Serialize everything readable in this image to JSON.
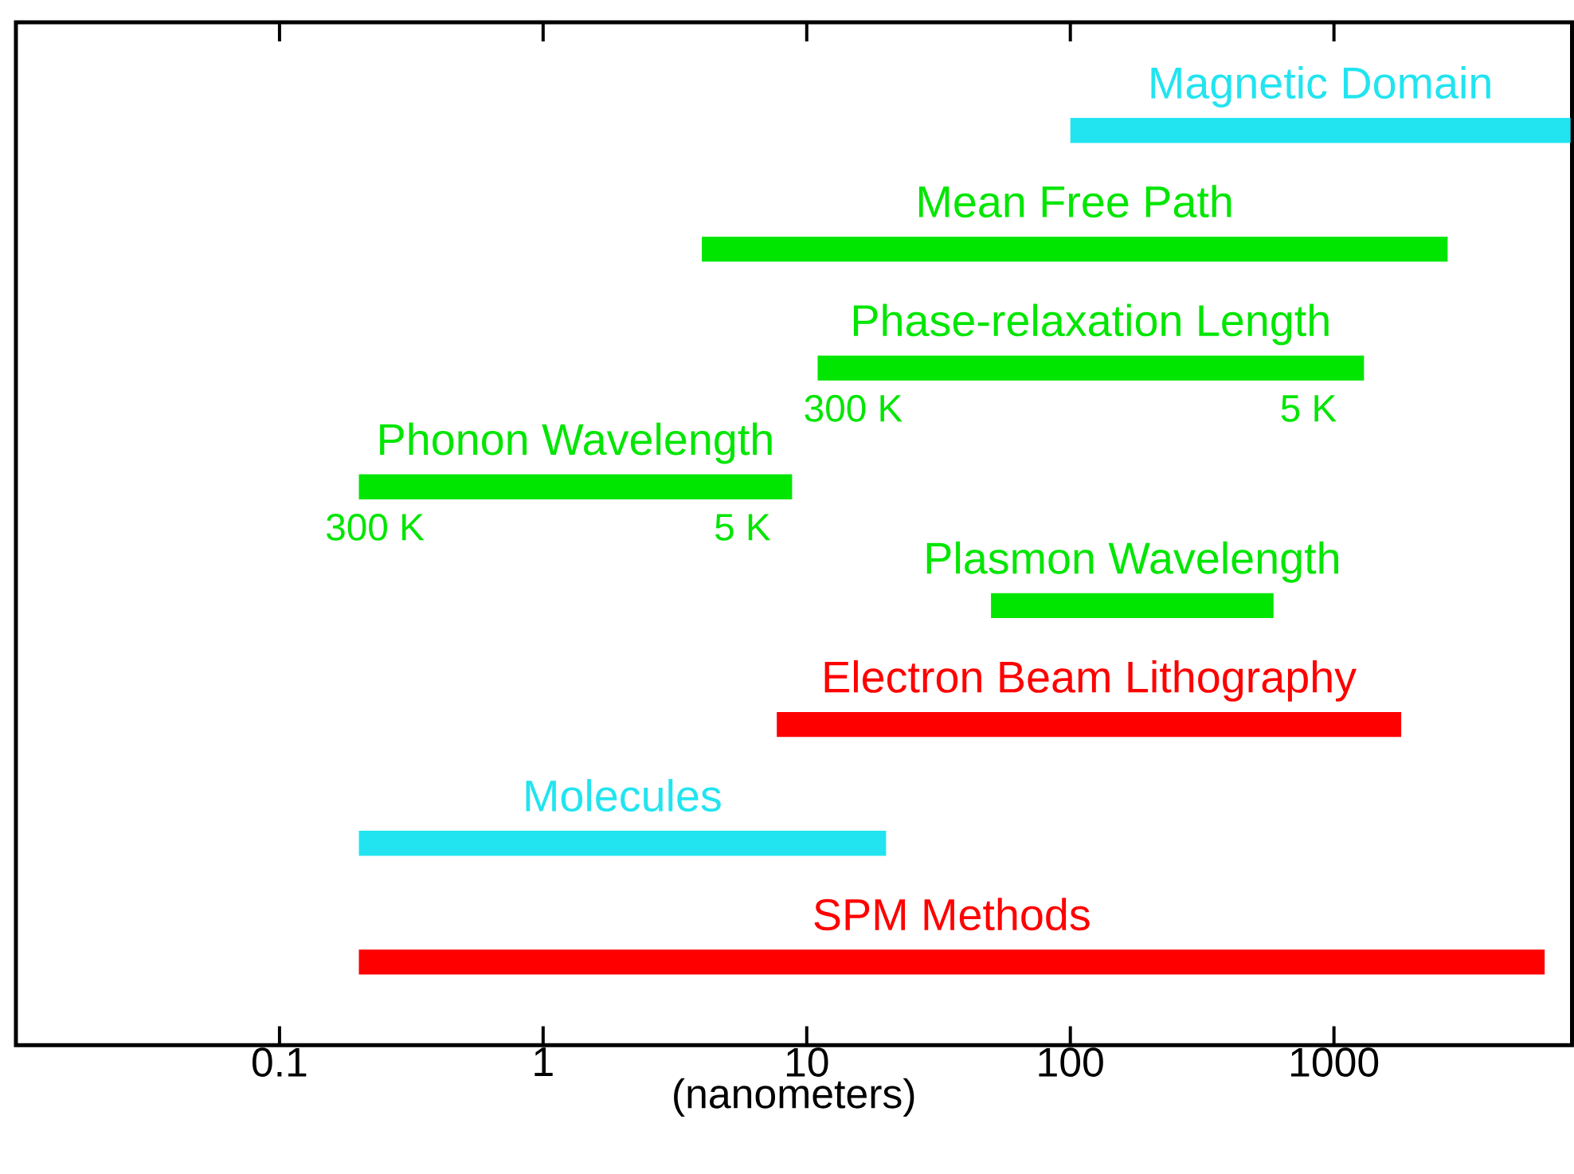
{
  "chart_data": {
    "type": "bar",
    "orientation": "horizontal",
    "log": "x",
    "categories": [
      "Magnetic Domain",
      "Mean Free Path",
      "Phase-relaxation Length",
      "Phonon Wavelength",
      "Plasmon Wavelength",
      "Electron Beam Lithography",
      "Molecules",
      "SPM Methods"
    ],
    "base": [
      100,
      4,
      11,
      0.2,
      50,
      7.7,
      0.2,
      0.2
    ],
    "values": [
      7800,
      2696,
      1289,
      8.6,
      540,
      1792,
      19.8,
      6300
    ],
    "colors": [
      "#22e4f0",
      "#00e600",
      "#00e600",
      "#00e600",
      "#00e600",
      "#ff0000",
      "#22e4f0",
      "#ff0000"
    ],
    "xlim": [
      0.01,
      8000
    ],
    "xticks": [
      0.1,
      1,
      10,
      100,
      1000
    ],
    "xlabel": "(nanometers)",
    "tick_labels": "x",
    "annotations": [
      {
        "text": "300 K",
        "x": 15,
        "y": "Phase-relaxation Length"
      },
      {
        "text": "5 K",
        "x": 800,
        "y": "Phase-relaxation Length"
      },
      {
        "text": "300 K",
        "x": 0.23,
        "y": "Phonon Wavelength"
      },
      {
        "text": "5 K",
        "x": 5.7,
        "y": "Phonon Wavelength"
      }
    ]
  }
}
